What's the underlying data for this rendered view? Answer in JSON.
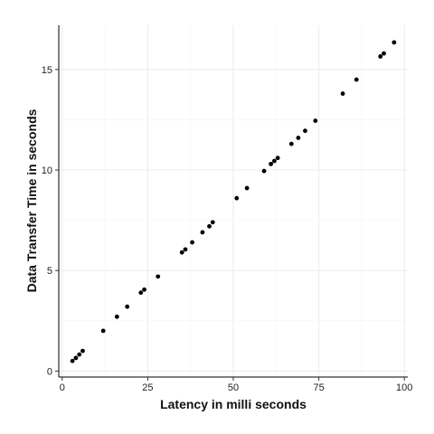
{
  "chart_data": {
    "type": "scatter",
    "title": "",
    "xlabel": "Latency in milli seconds",
    "ylabel": "Data Transfer Time in seconds",
    "xlim": [
      -1,
      101
    ],
    "ylim": [
      -0.3,
      17.2
    ],
    "x_ticks": [
      0,
      25,
      50,
      75,
      100
    ],
    "y_ticks": [
      0,
      5,
      10,
      15
    ],
    "grid": true,
    "points": [
      {
        "x": 3,
        "y": 0.5
      },
      {
        "x": 4,
        "y": 0.65
      },
      {
        "x": 5,
        "y": 0.82
      },
      {
        "x": 6,
        "y": 1.0
      },
      {
        "x": 12,
        "y": 2.0
      },
      {
        "x": 16,
        "y": 2.7
      },
      {
        "x": 19,
        "y": 3.2
      },
      {
        "x": 23,
        "y": 3.9
      },
      {
        "x": 24,
        "y": 4.05
      },
      {
        "x": 28,
        "y": 4.7
      },
      {
        "x": 35,
        "y": 5.9
      },
      {
        "x": 36,
        "y": 6.05
      },
      {
        "x": 38,
        "y": 6.4
      },
      {
        "x": 41,
        "y": 6.9
      },
      {
        "x": 43,
        "y": 7.2
      },
      {
        "x": 44,
        "y": 7.4
      },
      {
        "x": 51,
        "y": 8.6
      },
      {
        "x": 54,
        "y": 9.1
      },
      {
        "x": 59,
        "y": 9.95
      },
      {
        "x": 61,
        "y": 10.3
      },
      {
        "x": 62,
        "y": 10.45
      },
      {
        "x": 63,
        "y": 10.6
      },
      {
        "x": 67,
        "y": 11.3
      },
      {
        "x": 69,
        "y": 11.6
      },
      {
        "x": 71,
        "y": 11.95
      },
      {
        "x": 74,
        "y": 12.45
      },
      {
        "x": 82,
        "y": 13.8
      },
      {
        "x": 86,
        "y": 14.5
      },
      {
        "x": 93,
        "y": 15.65
      },
      {
        "x": 94,
        "y": 15.8
      },
      {
        "x": 97,
        "y": 16.35
      }
    ]
  }
}
